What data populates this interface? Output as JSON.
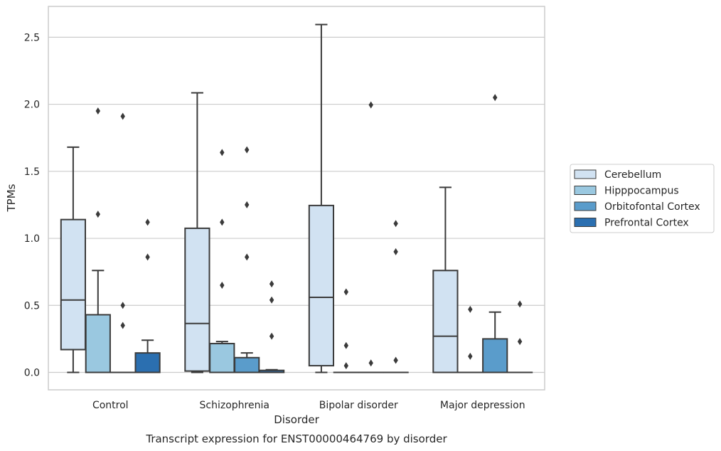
{
  "chart_data": {
    "type": "boxplot",
    "title": "",
    "xlabel": "Disorder",
    "ylabel": "TPMs",
    "caption": "Transcript expression for ENST00000464769 by disorder",
    "ylim": [
      -0.13,
      2.73
    ],
    "yticks": [
      0.0,
      0.5,
      1.0,
      1.5,
      2.0,
      2.5
    ],
    "ytick_labels": [
      "0.0",
      "0.5",
      "1.0",
      "1.5",
      "2.0",
      "2.5"
    ],
    "categories": [
      "Control",
      "Schizophrenia",
      "Bipolar disorder",
      "Major depression"
    ],
    "grid": true,
    "legend_position": "right",
    "series": [
      {
        "name": "Cerebellum",
        "color": "#d1e2f2",
        "boxes": [
          {
            "min": 0.0,
            "q1": 0.17,
            "median": 0.54,
            "q3": 1.14,
            "max": 1.68,
            "outliers": []
          },
          {
            "min": 0.0,
            "q1": 0.01,
            "median": 0.365,
            "q3": 1.075,
            "max": 2.085,
            "outliers": []
          },
          {
            "min": 0.0,
            "q1": 0.05,
            "median": 0.56,
            "q3": 1.245,
            "max": 2.595,
            "outliers": []
          },
          {
            "min": 0.0,
            "q1": 0.0,
            "median": 0.27,
            "q3": 0.76,
            "max": 1.38,
            "outliers": []
          }
        ]
      },
      {
        "name": "Hipppocampus",
        "color": "#9ac8e0",
        "boxes": [
          {
            "min": 0.0,
            "q1": 0.0,
            "median": 0.0,
            "q3": 0.43,
            "max": 0.76,
            "outliers": [
              1.95,
              1.18
            ]
          },
          {
            "min": 0.0,
            "q1": 0.0,
            "median": 0.0,
            "q3": 0.215,
            "max": 0.23,
            "outliers": [
              1.64,
              1.12,
              0.65
            ]
          },
          {
            "min": 0.0,
            "q1": 0.0,
            "median": 0.0,
            "q3": 0.0,
            "max": 0.0,
            "outliers": [
              0.6,
              0.2,
              0.05
            ]
          },
          {
            "min": 0.0,
            "q1": 0.0,
            "median": 0.0,
            "q3": 0.0,
            "max": 0.0,
            "outliers": [
              0.47,
              0.12
            ]
          }
        ]
      },
      {
        "name": "Orbitofontal Cortex",
        "color": "#5a9ccb",
        "boxes": [
          {
            "min": 0.0,
            "q1": 0.0,
            "median": 0.0,
            "q3": 0.0,
            "max": 0.0,
            "outliers": [
              1.91,
              0.5,
              0.35
            ]
          },
          {
            "min": 0.0,
            "q1": 0.0,
            "median": 0.0,
            "q3": 0.11,
            "max": 0.145,
            "outliers": [
              1.66,
              1.25,
              0.86
            ]
          },
          {
            "min": 0.0,
            "q1": 0.0,
            "median": 0.0,
            "q3": 0.0,
            "max": 0.0,
            "outliers": [
              1.995,
              0.07
            ]
          },
          {
            "min": 0.0,
            "q1": 0.0,
            "median": 0.0,
            "q3": 0.25,
            "max": 0.45,
            "outliers": [
              2.05
            ]
          }
        ]
      },
      {
        "name": "Prefrontal Cortex",
        "color": "#2b6fb0",
        "boxes": [
          {
            "min": 0.0,
            "q1": 0.0,
            "median": 0.0,
            "q3": 0.145,
            "max": 0.24,
            "outliers": [
              1.12,
              0.86
            ]
          },
          {
            "min": 0.0,
            "q1": 0.0,
            "median": 0.0,
            "q3": 0.015,
            "max": 0.02,
            "outliers": [
              0.66,
              0.54,
              0.27
            ]
          },
          {
            "min": 0.0,
            "q1": 0.0,
            "median": 0.0,
            "q3": 0.0,
            "max": 0.0,
            "outliers": [
              1.11,
              0.9,
              0.09
            ]
          },
          {
            "min": 0.0,
            "q1": 0.0,
            "median": 0.0,
            "q3": 0.0,
            "max": 0.0,
            "outliers": [
              0.51,
              0.23
            ]
          }
        ]
      }
    ]
  }
}
